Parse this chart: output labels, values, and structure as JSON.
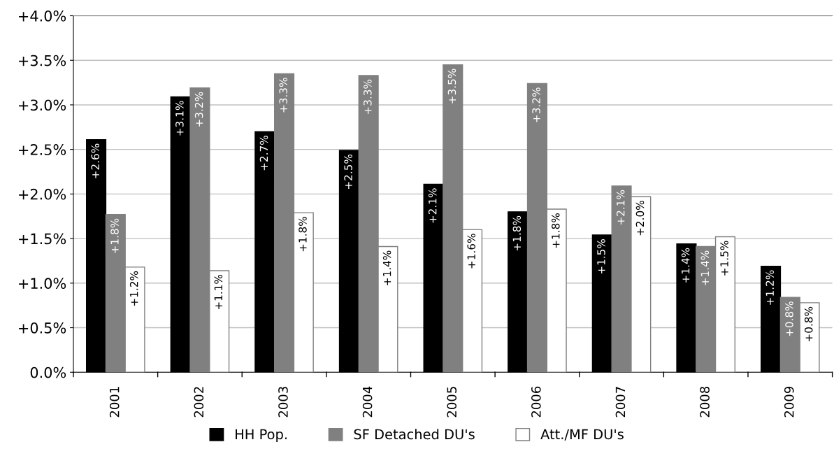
{
  "chart_data": {
    "type": "bar",
    "categories": [
      "2001",
      "2002",
      "2003",
      "2004",
      "2005",
      "2006",
      "2007",
      "2008",
      "2009"
    ],
    "series": [
      {
        "name": "HH Pop.",
        "color": "#000000",
        "values": [
          2.61,
          3.09,
          2.7,
          2.49,
          2.11,
          1.8,
          1.54,
          1.44,
          1.19
        ],
        "value_labels": [
          "+2.6%",
          "+3.1%",
          "+2.7%",
          "+2.5%",
          "+2.1%",
          "+1.8%",
          "+1.5%",
          "+1.4%",
          "+1.2%"
        ]
      },
      {
        "name": "SF Detached DU's",
        "color": "#808080",
        "values": [
          1.77,
          3.19,
          3.35,
          3.33,
          3.45,
          3.24,
          2.09,
          1.41,
          0.84
        ],
        "value_labels": [
          "+1.8%",
          "+3.2%",
          "+3.3%",
          "+3.3%",
          "+3.5%",
          "+3.2%",
          "+2.1%",
          "+1.4%",
          "+0.8%"
        ]
      },
      {
        "name": "Att./MF DU's",
        "color": "#ffffff",
        "values": [
          1.18,
          1.14,
          1.79,
          1.41,
          1.6,
          1.83,
          1.97,
          1.52,
          0.78
        ],
        "value_labels": [
          "+1.2%",
          "+1.1%",
          "+1.8%",
          "+1.4%",
          "+1.6%",
          "+1.8%",
          "+2.0%",
          "+1.5%",
          "+0.8%"
        ]
      }
    ],
    "ylim": [
      0,
      4
    ],
    "yticks": [
      {
        "value": 0,
        "label": "0.0%"
      },
      {
        "value": 0.5,
        "label": "+0.5%"
      },
      {
        "value": 1,
        "label": "+1.0%"
      },
      {
        "value": 1.5,
        "label": "+1.5%"
      },
      {
        "value": 2,
        "label": "+2.0%"
      },
      {
        "value": 2.5,
        "label": "+2.5%"
      },
      {
        "value": 3,
        "label": "+3.0%"
      },
      {
        "value": 3.5,
        "label": "+3.5%"
      },
      {
        "value": 4,
        "label": "+4.0%"
      }
    ],
    "grid": "y",
    "legend": "bottom"
  }
}
